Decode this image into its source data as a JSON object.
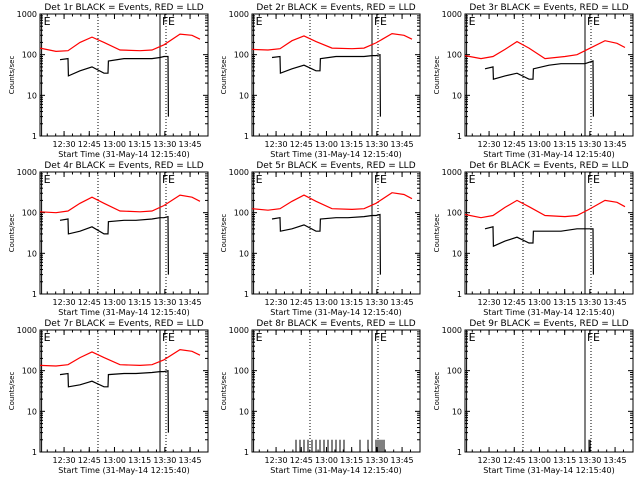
{
  "chart_data": [
    {
      "type": "line",
      "title": "Det 1r BLACK = Events, RED = LLD",
      "xlabel": "Start Time (31-May-14 12:15:40)",
      "ylabel": "Counts/sec",
      "ylim": [
        1,
        1000
      ],
      "yscale": "log",
      "x_range_min": [
        0,
        40
      ],
      "x_ticks": [
        "12:30",
        "12:45",
        "13:00",
        "13:15",
        "13:30",
        "13:45"
      ],
      "y_ticks": [
        "1",
        "10",
        "100",
        "1000"
      ],
      "markers": [
        {
          "label": "E",
          "x_min": 0.4,
          "style": "solid"
        },
        {
          "label": "",
          "x_min": 14.5,
          "style": "dotted"
        },
        {
          "label": "F",
          "x_min": 30,
          "style": "solid"
        },
        {
          "label": "E",
          "x_min": 31.5,
          "style": "dotted"
        }
      ],
      "series": [
        {
          "color": "#ff0000",
          "x_min": [
            0,
            4,
            7,
            10,
            13,
            16,
            20,
            25,
            28,
            31,
            35,
            38,
            40
          ],
          "values": [
            145,
            120,
            125,
            200,
            270,
            200,
            130,
            125,
            130,
            175,
            320,
            300,
            240
          ]
        },
        {
          "color": "#000000",
          "x_min": [
            5,
            7,
            7.1,
            10,
            13,
            16,
            17,
            17.1,
            21,
            24,
            28,
            30,
            31,
            32,
            32.1
          ],
          "values": [
            75,
            80,
            30,
            40,
            50,
            35,
            35,
            70,
            80,
            80,
            80,
            85,
            90,
            90,
            3
          ]
        }
      ]
    },
    {
      "type": "line",
      "title": "Det 2r BLACK = Events, RED = LLD",
      "xlabel": "Start Time (31-May-14 12:15:40)",
      "ylabel": "Counts/sec",
      "ylim": [
        1,
        1000
      ],
      "yscale": "log",
      "x_range_min": [
        0,
        40
      ],
      "x_ticks": [
        "12:30",
        "12:45",
        "13:00",
        "13:15",
        "13:30",
        "13:45"
      ],
      "y_ticks": [
        "1",
        "10",
        "100",
        "1000"
      ],
      "markers": [
        {
          "label": "E",
          "x_min": 0.4,
          "style": "solid"
        },
        {
          "label": "",
          "x_min": 14.5,
          "style": "dotted"
        },
        {
          "label": "F",
          "x_min": 30,
          "style": "solid"
        },
        {
          "label": "E",
          "x_min": 31.5,
          "style": "dotted"
        }
      ],
      "series": [
        {
          "color": "#ff0000",
          "x_min": [
            0,
            4,
            7,
            10,
            13,
            16,
            20,
            25,
            28,
            31,
            35,
            38,
            40
          ],
          "values": [
            135,
            130,
            140,
            220,
            290,
            210,
            145,
            140,
            145,
            195,
            330,
            300,
            240
          ]
        },
        {
          "color": "#000000",
          "x_min": [
            5,
            7,
            7.1,
            10,
            13,
            16,
            17,
            17.1,
            21,
            24,
            28,
            30,
            31,
            32,
            32.1
          ],
          "values": [
            85,
            90,
            35,
            45,
            55,
            40,
            40,
            80,
            90,
            90,
            90,
            95,
            95,
            100,
            3
          ]
        }
      ]
    },
    {
      "type": "line",
      "title": "Det 3r BLACK = Events, RED = LLD",
      "xlabel": "Start Time (31-May-14 12:15:40)",
      "ylabel": "Counts/sec",
      "ylim": [
        1,
        1000
      ],
      "yscale": "log",
      "x_range_min": [
        0,
        40
      ],
      "x_ticks": [
        "12:30",
        "12:45",
        "13:00",
        "13:15",
        "13:30",
        "13:45"
      ],
      "y_ticks": [
        "1",
        "10",
        "100",
        "1000"
      ],
      "markers": [
        {
          "label": "E",
          "x_min": 0.4,
          "style": "solid"
        },
        {
          "label": "",
          "x_min": 14.5,
          "style": "dotted"
        },
        {
          "label": "F",
          "x_min": 30,
          "style": "solid"
        },
        {
          "label": "E",
          "x_min": 31.5,
          "style": "dotted"
        }
      ],
      "series": [
        {
          "color": "#ff0000",
          "x_min": [
            0,
            4,
            7,
            10,
            13,
            16,
            20,
            25,
            28,
            31,
            35,
            38,
            40
          ],
          "values": [
            95,
            80,
            90,
            135,
            210,
            145,
            80,
            90,
            100,
            140,
            220,
            190,
            150
          ]
        },
        {
          "color": "#000000",
          "x_min": [
            5,
            7,
            7.1,
            10,
            13,
            16,
            17,
            17.1,
            21,
            24,
            28,
            30,
            31,
            32,
            32.1
          ],
          "values": [
            45,
            50,
            25,
            30,
            35,
            25,
            25,
            45,
            55,
            60,
            60,
            60,
            65,
            70,
            3
          ]
        }
      ]
    },
    {
      "type": "line",
      "title": "Det 4r BLACK = Events, RED = LLD",
      "xlabel": "Start Time (31-May-14 12:15:40)",
      "ylabel": "Counts/sec",
      "ylim": [
        1,
        1000
      ],
      "yscale": "log",
      "x_range_min": [
        0,
        40
      ],
      "x_ticks": [
        "12:30",
        "12:45",
        "13:00",
        "13:15",
        "13:30",
        "13:45"
      ],
      "y_ticks": [
        "1",
        "10",
        "100",
        "1000"
      ],
      "markers": [
        {
          "label": "E",
          "x_min": 0.4,
          "style": "solid"
        },
        {
          "label": "",
          "x_min": 14.5,
          "style": "dotted"
        },
        {
          "label": "F",
          "x_min": 30,
          "style": "solid"
        },
        {
          "label": "E",
          "x_min": 31.5,
          "style": "dotted"
        }
      ],
      "series": [
        {
          "color": "#ff0000",
          "x_min": [
            0,
            4,
            7,
            10,
            13,
            16,
            20,
            25,
            28,
            31,
            35,
            38,
            40
          ],
          "values": [
            105,
            100,
            110,
            170,
            240,
            170,
            110,
            105,
            110,
            150,
            270,
            240,
            190
          ]
        },
        {
          "color": "#000000",
          "x_min": [
            5,
            7,
            7.1,
            10,
            13,
            16,
            17,
            17.1,
            21,
            24,
            28,
            30,
            31,
            32,
            32.1
          ],
          "values": [
            65,
            70,
            30,
            35,
            45,
            30,
            30,
            60,
            65,
            65,
            70,
            75,
            75,
            80,
            3
          ]
        }
      ]
    },
    {
      "type": "line",
      "title": "Det 5r BLACK = Events, RED = LLD",
      "xlabel": "Start Time (31-May-14 12:15:40)",
      "ylabel": "Counts/sec",
      "ylim": [
        1,
        1000
      ],
      "yscale": "log",
      "x_range_min": [
        0,
        40
      ],
      "x_ticks": [
        "12:30",
        "12:45",
        "13:00",
        "13:15",
        "13:30",
        "13:45"
      ],
      "y_ticks": [
        "1",
        "10",
        "100",
        "1000"
      ],
      "markers": [
        {
          "label": "E",
          "x_min": 0.4,
          "style": "solid"
        },
        {
          "label": "",
          "x_min": 14.5,
          "style": "dotted"
        },
        {
          "label": "F",
          "x_min": 30,
          "style": "solid"
        },
        {
          "label": "E",
          "x_min": 31.5,
          "style": "dotted"
        }
      ],
      "series": [
        {
          "color": "#ff0000",
          "x_min": [
            0,
            4,
            7,
            10,
            13,
            16,
            20,
            25,
            28,
            31,
            35,
            38,
            40
          ],
          "values": [
            125,
            115,
            125,
            190,
            270,
            190,
            125,
            120,
            125,
            170,
            310,
            280,
            220
          ]
        },
        {
          "color": "#000000",
          "x_min": [
            5,
            7,
            7.1,
            10,
            13,
            16,
            17,
            17.1,
            21,
            24,
            28,
            30,
            31,
            32,
            32.1
          ],
          "values": [
            70,
            75,
            35,
            40,
            50,
            35,
            35,
            70,
            75,
            75,
            80,
            85,
            85,
            90,
            3
          ]
        }
      ]
    },
    {
      "type": "line",
      "title": "Det 6r BLACK = Events, RED = LLD",
      "xlabel": "Start Time (31-May-14 12:15:40)",
      "ylabel": "Counts/sec",
      "ylim": [
        1,
        1000
      ],
      "yscale": "log",
      "x_range_min": [
        0,
        40
      ],
      "x_ticks": [
        "12:30",
        "12:45",
        "13:00",
        "13:15",
        "13:30",
        "13:45"
      ],
      "y_ticks": [
        "1",
        "10",
        "100",
        "1000"
      ],
      "markers": [
        {
          "label": "E",
          "x_min": 0.4,
          "style": "solid"
        },
        {
          "label": "",
          "x_min": 14.5,
          "style": "dotted"
        },
        {
          "label": "F",
          "x_min": 30,
          "style": "solid"
        },
        {
          "label": "E",
          "x_min": 31.5,
          "style": "dotted"
        }
      ],
      "series": [
        {
          "color": "#ff0000",
          "x_min": [
            0,
            4,
            7,
            10,
            13,
            16,
            20,
            25,
            28,
            31,
            35,
            38,
            40
          ],
          "values": [
            90,
            75,
            85,
            135,
            200,
            140,
            85,
            80,
            85,
            120,
            200,
            180,
            140
          ]
        },
        {
          "color": "#000000",
          "x_min": [
            5,
            7,
            7.1,
            10,
            13,
            16,
            17,
            17.1,
            21,
            24,
            28,
            30,
            31,
            32,
            32.1
          ],
          "values": [
            40,
            45,
            15,
            20,
            25,
            18,
            18,
            35,
            35,
            35,
            40,
            40,
            40,
            40,
            3
          ]
        }
      ]
    },
    {
      "type": "line",
      "title": "Det 7r BLACK = Events, RED = LLD",
      "xlabel": "Start Time (31-May-14 12:15:40)",
      "ylabel": "Counts/sec",
      "ylim": [
        1,
        1000
      ],
      "yscale": "log",
      "x_range_min": [
        0,
        40
      ],
      "x_ticks": [
        "12:30",
        "12:45",
        "13:00",
        "13:15",
        "13:30",
        "13:45"
      ],
      "y_ticks": [
        "1",
        "10",
        "100",
        "1000"
      ],
      "markers": [
        {
          "label": "E",
          "x_min": 0.4,
          "style": "solid"
        },
        {
          "label": "",
          "x_min": 14.5,
          "style": "dotted"
        },
        {
          "label": "F",
          "x_min": 30,
          "style": "solid"
        },
        {
          "label": "E",
          "x_min": 31.5,
          "style": "dotted"
        }
      ],
      "series": [
        {
          "color": "#ff0000",
          "x_min": [
            0,
            4,
            7,
            10,
            13,
            16,
            20,
            25,
            28,
            31,
            35,
            38,
            40
          ],
          "values": [
            135,
            130,
            140,
            210,
            290,
            210,
            140,
            135,
            140,
            185,
            330,
            300,
            240
          ]
        },
        {
          "color": "#000000",
          "x_min": [
            5,
            7,
            7.1,
            10,
            13,
            16,
            17,
            17.1,
            21,
            24,
            28,
            30,
            31,
            32,
            32.1
          ],
          "values": [
            80,
            85,
            40,
            45,
            55,
            40,
            40,
            80,
            85,
            85,
            90,
            95,
            95,
            100,
            3
          ]
        }
      ]
    },
    {
      "type": "line",
      "title": "Det 8r BLACK = Events, RED = LLD",
      "xlabel": "Start Time (31-May-14 12:15:40)",
      "ylabel": "Counts/sec",
      "ylim": [
        1,
        1000
      ],
      "yscale": "log",
      "x_range_min": [
        0,
        40
      ],
      "x_ticks": [
        "12:30",
        "12:45",
        "13:00",
        "13:15",
        "13:30",
        "13:45"
      ],
      "y_ticks": [
        "1",
        "10",
        "100",
        "1000"
      ],
      "markers": [
        {
          "label": "E",
          "x_min": 0.4,
          "style": "solid"
        },
        {
          "label": "",
          "x_min": 14.5,
          "style": "dotted"
        },
        {
          "label": "F",
          "x_min": 30,
          "style": "solid"
        },
        {
          "label": "E",
          "x_min": 31.5,
          "style": "dotted"
        }
      ],
      "series": [
        {
          "color": "#000000",
          "type": "spikes",
          "x_min": [
            11,
            12,
            13,
            14,
            15,
            16,
            17,
            18,
            19,
            20,
            21,
            22,
            23,
            27,
            29,
            31,
            31.5,
            32,
            32.5,
            33
          ],
          "values": [
            2,
            2,
            2,
            2,
            2,
            2,
            2,
            2,
            2,
            2,
            2,
            2,
            2,
            2,
            2,
            2,
            2,
            2,
            2,
            2
          ]
        }
      ]
    },
    {
      "type": "line",
      "title": "Det 9r BLACK = Events, RED = LLD",
      "xlabel": "Start Time (31-May-14 12:15:40)",
      "ylabel": "Counts/sec",
      "ylim": [
        1,
        1000
      ],
      "yscale": "log",
      "x_range_min": [
        0,
        40
      ],
      "x_ticks": [
        "12:30",
        "12:45",
        "13:00",
        "13:15",
        "13:30",
        "13:45"
      ],
      "y_ticks": [
        "1",
        "10",
        "100",
        "1000"
      ],
      "markers": [
        {
          "label": "E",
          "x_min": 0.4,
          "style": "solid"
        },
        {
          "label": "",
          "x_min": 14.5,
          "style": "dotted"
        },
        {
          "label": "F",
          "x_min": 30,
          "style": "solid"
        },
        {
          "label": "E",
          "x_min": 31.5,
          "style": "dotted"
        }
      ],
      "series": [
        {
          "color": "#000000",
          "type": "spikes",
          "x_min": [
            31,
            31.3
          ],
          "values": [
            2,
            2
          ]
        }
      ]
    }
  ]
}
